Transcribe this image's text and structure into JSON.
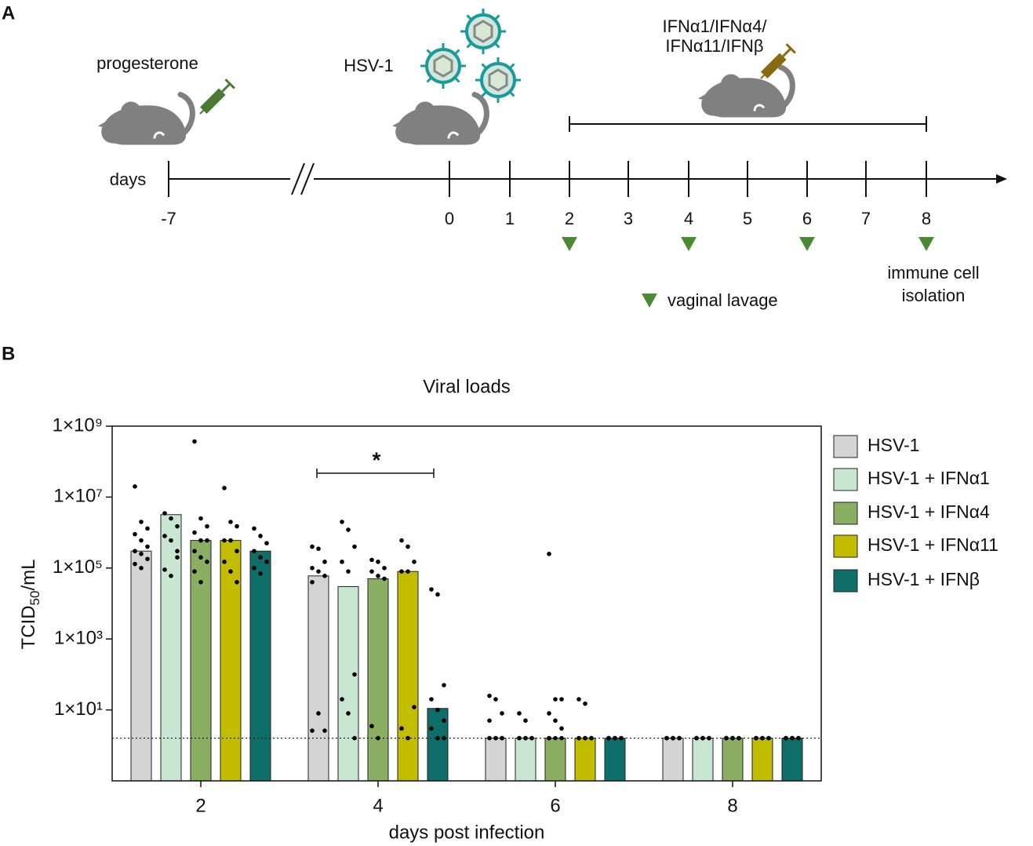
{
  "panel_a": {
    "label": "A",
    "progesterone": "progesterone",
    "infection": "HSV-1",
    "treatment": [
      "IFNα1/IFNα4/",
      "IFNα11/IFNβ"
    ],
    "axis_label": "days",
    "ticks": [
      "-7",
      "0",
      "1",
      "2",
      "3",
      "4",
      "5",
      "6",
      "7",
      "8"
    ],
    "endpoint": [
      "immune cell",
      "isolation"
    ],
    "legend": "vaginal lavage"
  },
  "chart_data": {
    "type": "bar",
    "panel_label": "B",
    "title": "Viral loads",
    "ylabel": {
      "main": "TCID",
      "sub": "50",
      "unit": "/mL"
    },
    "xlabel": "days post infection",
    "annotation": "*",
    "categories": [
      "2",
      "4",
      "6",
      "8"
    ],
    "log_scale": true,
    "ylim": [
      0.1,
      1000000000
    ],
    "yticks": [
      {
        "value": 1000000000,
        "label": "1×10⁹"
      },
      {
        "value": 10000000,
        "label": "1×10⁷"
      },
      {
        "value": 100000,
        "label": "1×10⁵"
      },
      {
        "value": 1000,
        "label": "1×10³"
      },
      {
        "value": 10,
        "label": "1×10¹"
      }
    ],
    "detection_limit": 1.6,
    "series": [
      {
        "name": "HSV-1",
        "color": "#d4d4d4",
        "values": [
          300000,
          60000,
          1.6,
          1.6
        ],
        "points": [
          [
            20000000,
            2000000,
            1300000,
            900000,
            600000,
            400000,
            300000,
            250000,
            180000,
            130000,
            100000
          ],
          [
            400000,
            350000,
            150000,
            100000,
            80000,
            60000,
            40000,
            8,
            2.6,
            2.6
          ],
          [
            25,
            20,
            8,
            5,
            1.6,
            1.6,
            1.6,
            1.6,
            1.6
          ],
          [
            1.6,
            1.6,
            1.6,
            1.6,
            1.6,
            1.6,
            1.6,
            1.6
          ]
        ]
      },
      {
        "name": "HSV-1 + IFNα1",
        "color": "#c9e6d2",
        "values": [
          3200000,
          30000,
          1.6,
          1.6
        ],
        "points": [
          [
            3500000,
            2500000,
            1500000,
            800000,
            600000,
            300000,
            90000,
            60000,
            200000
          ],
          [
            2000000,
            1200000,
            400000,
            150000,
            80000,
            100,
            20,
            8,
            1.6
          ],
          [
            8,
            5,
            1.6,
            1.6,
            1.6,
            1.6,
            1.6,
            1.6
          ],
          [
            1.6,
            1.6,
            1.6,
            1.6,
            1.6,
            1.6,
            1.6,
            1.6
          ]
        ]
      },
      {
        "name": "HSV-1 + IFNα4",
        "color": "#8aaf62",
        "values": [
          600000,
          50000,
          1.6,
          1.6
        ],
        "points": [
          [
            370000000,
            2500000,
            1500000,
            1000000,
            600000,
            600000,
            300000,
            200000,
            150000,
            80000,
            40000
          ],
          [
            170000,
            150000,
            100000,
            80000,
            60000,
            50000,
            3.5,
            1.6
          ],
          [
            250000,
            20,
            20,
            8,
            5,
            3,
            1.6,
            1.6,
            1.6,
            1.6
          ],
          [
            1.6,
            1.6,
            1.6,
            1.6,
            1.6,
            1.6,
            1.6,
            1.6
          ]
        ]
      },
      {
        "name": "HSV-1 + IFNα11",
        "color": "#c2bd00",
        "values": [
          600000,
          80000,
          1.6,
          1.6
        ],
        "points": [
          [
            18000000,
            2000000,
            1500000,
            600000,
            600000,
            300000,
            150000,
            80000,
            40000
          ],
          [
            600000,
            400000,
            150000,
            80000,
            80000,
            12,
            3,
            1.6
          ],
          [
            20,
            15,
            1.6,
            1.6,
            1.6,
            1.6,
            1.6,
            1.6
          ],
          [
            1.6,
            1.6,
            1.6,
            1.6,
            1.6,
            1.6,
            1.6,
            1.6
          ]
        ]
      },
      {
        "name": "HSV-1 + IFNβ",
        "color": "#0e6e6a",
        "values": [
          300000,
          11,
          1.6,
          1.6
        ],
        "points": [
          [
            1300000,
            800000,
            500000,
            300000,
            200000,
            150000,
            100000,
            70000
          ],
          [
            25000,
            18000,
            50,
            20,
            10,
            5,
            3,
            1.6,
            1.6
          ],
          [
            1.6,
            1.6,
            1.6,
            1.6,
            1.6,
            1.6,
            1.6,
            1.6
          ],
          [
            1.6,
            1.6,
            1.6,
            1.6,
            1.6,
            1.6,
            1.6,
            1.6
          ]
        ]
      }
    ]
  }
}
